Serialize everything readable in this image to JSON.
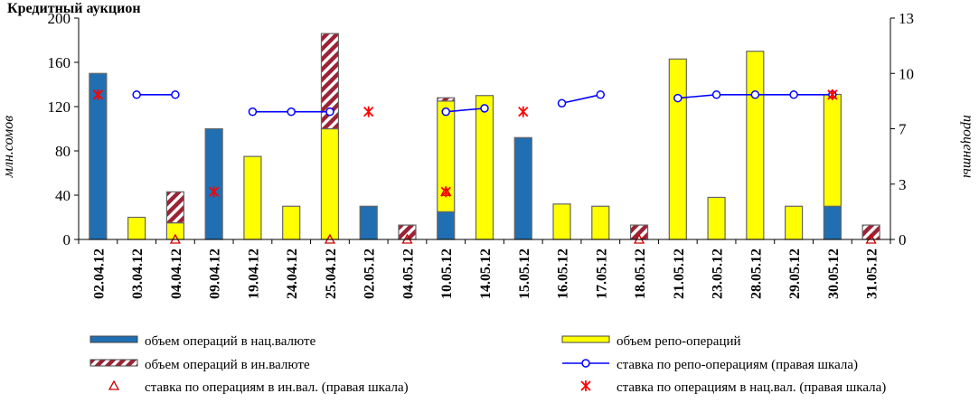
{
  "chart_data": {
    "type": "bar",
    "heading": "Кредитный аукцион",
    "ylabel_left": "млн.сомов",
    "ylabel_right": "проценты",
    "ylim_left": [
      0,
      200
    ],
    "ylim_right": [
      0,
      13
    ],
    "yticks_left": [
      "0",
      "40",
      "80",
      "120",
      "160",
      "200"
    ],
    "yticks_right": [
      "0",
      "3",
      "7",
      "10",
      "13"
    ],
    "categories": [
      "02.04.12",
      "03.04.12",
      "04.04.12",
      "09.04.12",
      "19.04.12",
      "24.04.12",
      "25.04.12",
      "02.05.12",
      "04.05.12",
      "10.05.12",
      "14.05.12",
      "15.05.12",
      "16.05.12",
      "17.05.12",
      "18.05.12",
      "21.05.12",
      "23.05.12",
      "28.05.12",
      "29.05.12",
      "30.05.12",
      "31.05.12"
    ],
    "series": [
      {
        "name": "объем операций в нац.валюте",
        "kind": "bar",
        "color": "#1f6fb2",
        "values": [
          150,
          0,
          0,
          100,
          0,
          0,
          0,
          30,
          0,
          25,
          0,
          92,
          0,
          0,
          0,
          0,
          0,
          0,
          0,
          30,
          0
        ]
      },
      {
        "name": "объем репо-операций",
        "kind": "bar",
        "color": "#ffff00",
        "values": [
          0,
          20,
          15,
          0,
          75,
          30,
          100,
          0,
          0,
          100,
          130,
          0,
          32,
          30,
          0,
          163,
          38,
          170,
          30,
          101,
          0
        ]
      },
      {
        "name": "объем операций в ин.валюте",
        "kind": "bar",
        "color": "#9b2335",
        "values": [
          0,
          0,
          28,
          0,
          0,
          0,
          86,
          0,
          13,
          3,
          0,
          0,
          0,
          0,
          13,
          0,
          0,
          0,
          0,
          0,
          13
        ]
      },
      {
        "name": "ставка по репо-операциям (правая шкала)",
        "kind": "line",
        "color": "#0000ff",
        "values": [
          null,
          8.5,
          8.5,
          null,
          7.5,
          7.5,
          7.5,
          null,
          null,
          7.5,
          7.7,
          null,
          8.0,
          8.5,
          null,
          8.3,
          8.5,
          8.5,
          8.5,
          8.5,
          null
        ]
      },
      {
        "name": "ставка по операциям в ин.вал. (правая шкала)",
        "kind": "marker",
        "color": "#cc0000",
        "values": [
          null,
          null,
          0,
          null,
          null,
          null,
          0,
          null,
          0,
          2.8,
          null,
          null,
          null,
          null,
          0,
          null,
          null,
          null,
          null,
          null,
          0
        ]
      },
      {
        "name": "ставка по операциям в нац.вал. (правая шкала)",
        "kind": "marker",
        "color": "#ff0000",
        "values": [
          8.5,
          null,
          null,
          2.8,
          null,
          null,
          null,
          7.5,
          null,
          2.8,
          null,
          7.5,
          null,
          null,
          null,
          null,
          null,
          null,
          null,
          8.5,
          null
        ]
      }
    ],
    "legend_position": "bottom",
    "grid": false
  }
}
